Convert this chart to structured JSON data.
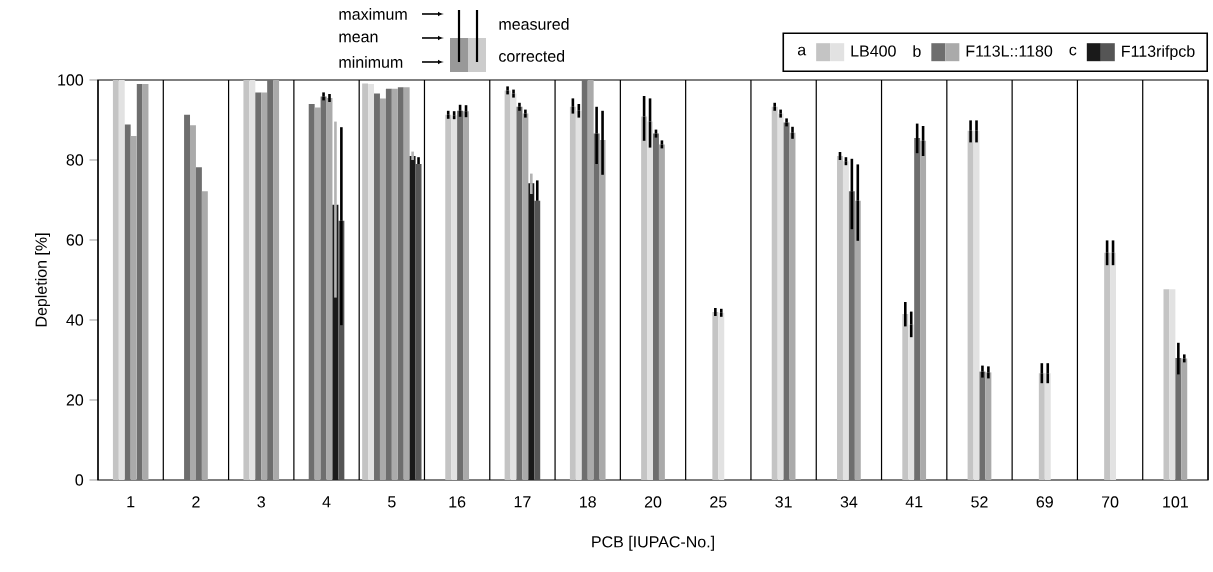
{
  "chart_data": {
    "type": "bar",
    "xlabel": "PCB [IUPAC-No.]",
    "ylabel": "Depletion [%]",
    "categories": [
      "1",
      "2",
      "3",
      "4",
      "5",
      "16",
      "17",
      "18",
      "20",
      "25",
      "31",
      "34",
      "41",
      "52",
      "69",
      "70",
      "101"
    ],
    "ylim": [
      0,
      100
    ],
    "yticks": [
      0,
      20,
      40,
      60,
      80,
      100
    ],
    "legend": "top",
    "annotations": [
      "maximum",
      "mean",
      "minimum",
      "a",
      "b",
      "c",
      "measured",
      "corrected"
    ],
    "series": [
      {
        "name": "LB400",
        "color": "#c4c4c4",
        "values": [
          100,
          null,
          100,
          null,
          99.1,
          91.3,
          97.4,
          93.3,
          90.9,
          42.0,
          93.3,
          81.0,
          41.5,
          87.3,
          26.7,
          56.8,
          47.7
        ],
        "errors": [
          null,
          null,
          null,
          null,
          null,
          1,
          1,
          [
            91.6,
            95.4
          ],
          [
            84.8,
            96.0
          ],
          1,
          1,
          1,
          [
            38.4,
            44.5
          ],
          [
            84.4,
            89.9
          ],
          [
            24.2,
            29.2
          ],
          [
            53.7,
            59.9
          ],
          null
        ]
      },
      {
        "color": "#e2e2e2",
        "values": [
          100,
          null,
          100,
          null,
          99.0,
          91.2,
          96.6,
          92.3,
          89.6,
          41.8,
          91.6,
          79.7,
          38.9,
          87.3,
          26.7,
          56.8,
          47.7
        ],
        "errors": [
          null,
          null,
          null,
          null,
          null,
          1,
          1,
          [
            90.6,
            94.0
          ],
          [
            83.1,
            95.4
          ],
          1,
          1,
          1,
          [
            35.7,
            42.1
          ],
          [
            84.4,
            89.9
          ],
          [
            24.2,
            29.2
          ],
          [
            53.7,
            59.9
          ],
          null
        ]
      },
      {
        "name": "F113L::1180",
        "color": "#6e6e6e",
        "values": [
          88.9,
          91.3,
          96.9,
          94.0,
          96.6,
          92.3,
          93.3,
          100,
          86.6,
          null,
          89.4,
          72.2,
          85.5,
          27.1,
          null,
          null,
          30.5
        ],
        "errors": [
          null,
          null,
          null,
          null,
          null,
          1.5,
          1,
          null,
          1,
          null,
          1,
          [
            62.7,
            80.3
          ],
          [
            81.7,
            89.1
          ],
          1.5,
          null,
          null,
          [
            26.4,
            34.3
          ]
        ]
      },
      {
        "color": "#aaaaaa",
        "values": [
          86.0,
          88.7,
          96.9,
          93.1,
          95.4,
          92.2,
          91.6,
          100,
          83.9,
          null,
          86.8,
          69.8,
          84.8,
          26.9,
          null,
          null,
          30.4
        ],
        "errors": [
          null,
          null,
          null,
          null,
          null,
          1.5,
          1,
          null,
          1,
          null,
          1.5,
          [
            59.8,
            78.9
          ],
          [
            81.0,
            88.5
          ],
          1.5,
          null,
          null,
          1
        ]
      },
      {
        "color": "#6e6e6e",
        "values": [
          99.0,
          78.2,
          100,
          95.9,
          97.8,
          null,
          null,
          86.6,
          null,
          null,
          null,
          null,
          null,
          null,
          null,
          null,
          null
        ],
        "errors": [
          null,
          null,
          null,
          1,
          null,
          null,
          null,
          [
            79.0,
            93.3
          ],
          null,
          null,
          null,
          null,
          null,
          null,
          null,
          null,
          null
        ]
      },
      {
        "color": "#aaaaaa",
        "values": [
          99.0,
          72.2,
          100,
          95.5,
          97.8,
          null,
          null,
          85.0,
          null,
          null,
          null,
          null,
          null,
          null,
          null,
          null,
          null
        ],
        "errors": [
          null,
          null,
          null,
          1,
          null,
          null,
          null,
          [
            76.3,
            92.3
          ],
          null,
          null,
          null,
          null,
          null,
          null,
          null,
          null,
          null
        ]
      },
      {
        "color": "#6e6e6e",
        "values": [
          null,
          null,
          null,
          null,
          98.2,
          null,
          null,
          null,
          null,
          null,
          null,
          null,
          null,
          null,
          null,
          null,
          null
        ]
      },
      {
        "color": "#aaaaaa",
        "values": [
          null,
          null,
          null,
          null,
          98.2,
          null,
          null,
          null,
          null,
          null,
          null,
          null,
          null,
          null,
          null,
          null,
          null
        ]
      },
      {
        "name": "F113rifpcb",
        "color": "#1a1a1a",
        "values": [
          null,
          null,
          null,
          68.8,
          81.0,
          null,
          74.2,
          null,
          null,
          null,
          null,
          null,
          null,
          null,
          null,
          null,
          null
        ],
        "errors": [
          null,
          null,
          null,
          [
            45.6,
            89.6
          ],
          [
            80.0,
            82.1
          ],
          null,
          [
            71.5,
            76.6
          ],
          null,
          null,
          null,
          null,
          null,
          null,
          null,
          null,
          null,
          null
        ]
      },
      {
        "color": "#555555",
        "values": [
          null,
          null,
          null,
          64.8,
          79.0,
          null,
          69.8,
          null,
          null,
          null,
          null,
          null,
          null,
          null,
          null,
          null,
          null
        ],
        "errors": [
          null,
          null,
          null,
          [
            38.7,
            88.2
          ],
          [
            79.0,
            80.7
          ],
          null,
          [
            69.8,
            74.9
          ],
          null,
          null,
          null,
          null,
          null,
          null,
          null,
          null,
          null,
          null
        ]
      }
    ]
  }
}
